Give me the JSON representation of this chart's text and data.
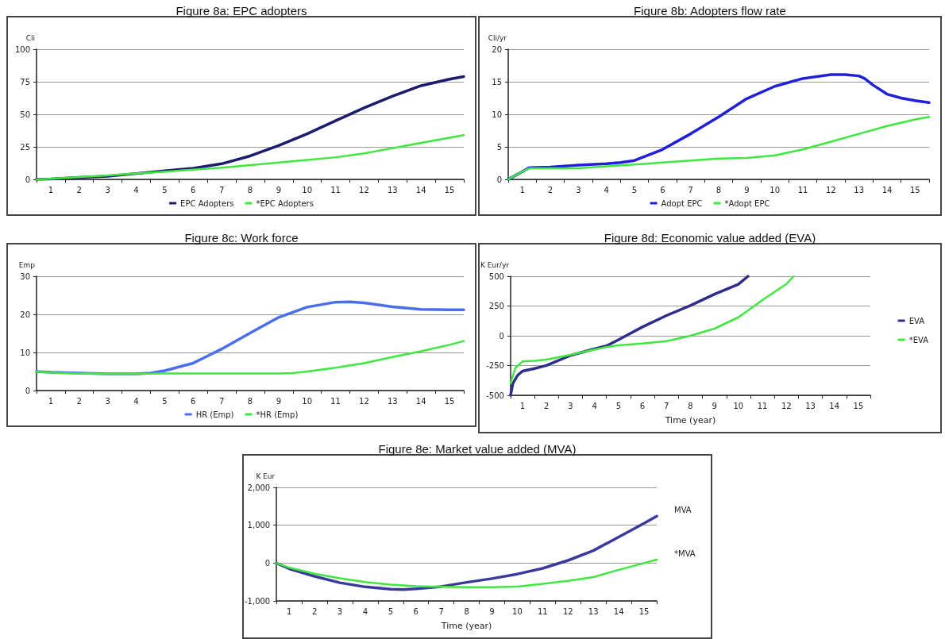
{
  "chart_data": [
    {
      "type": "line",
      "title": "Figure 8a: EPC adopters",
      "ylabel": "Cli",
      "xlim": [
        0.5,
        15.5
      ],
      "xticks": [
        {
          "value": 0.5,
          "label": null
        },
        1,
        {
          "value": 1.5,
          "label": null
        },
        2,
        {
          "value": 2.5,
          "label": null
        },
        3,
        {
          "value": 3.5,
          "label": null
        },
        4,
        {
          "value": 4.5,
          "label": null
        },
        5,
        {
          "value": 5.5,
          "label": null
        },
        6,
        {
          "value": 6.5,
          "label": null
        },
        7,
        {
          "value": 7.5,
          "label": null
        },
        8,
        {
          "value": 8.5,
          "label": null
        },
        9,
        {
          "value": 9.5,
          "label": null
        },
        10,
        {
          "value": 10.5,
          "label": null
        },
        11,
        {
          "value": 11.5,
          "label": null
        },
        12,
        {
          "value": 12.5,
          "label": null
        },
        13,
        {
          "value": 13.5,
          "label": null
        },
        14,
        {
          "value": 14.5,
          "label": null
        },
        15,
        {
          "value": 15.5,
          "label": null
        }
      ],
      "ylim": [
        0,
        100
      ],
      "yticks": [
        0,
        25,
        50,
        75,
        100
      ],
      "grid": "y",
      "legend": "bottom",
      "marker": "none",
      "line_style": "solid",
      "series": [
        {
          "name": "EPC Adopters",
          "color": "#1c1c6e",
          "x": [
            0.5,
            1,
            2,
            3,
            4,
            5,
            6,
            7,
            8,
            9,
            10,
            11,
            12,
            13,
            14,
            15,
            15.5
          ],
          "values": [
            0,
            0.3,
            1.5,
            2.5,
            4.5,
            6.5,
            8.5,
            12,
            18,
            26,
            35,
            45,
            55,
            64,
            72,
            77,
            79
          ]
        },
        {
          "name": "*EPC Adopters",
          "color": "#3ee83e",
          "x": [
            0.5,
            1,
            2,
            3,
            4,
            5,
            6,
            7,
            8,
            9,
            10,
            11,
            12,
            13,
            14,
            15,
            15.5
          ],
          "values": [
            0,
            0.5,
            1.8,
            3,
            4.5,
            6,
            7.5,
            9,
            11,
            13,
            15,
            17,
            20,
            24,
            28,
            32,
            34
          ]
        }
      ]
    },
    {
      "type": "line",
      "title": "Figure 8b: Adopters flow rate",
      "ylabel": "Cli/yr",
      "xlim": [
        0.5,
        15.5
      ],
      "xticks": [
        {
          "value": 0.5,
          "label": null
        },
        1,
        {
          "value": 1.5,
          "label": null
        },
        2,
        {
          "value": 2.5,
          "label": null
        },
        3,
        {
          "value": 3.5,
          "label": null
        },
        4,
        {
          "value": 4.5,
          "label": null
        },
        5,
        {
          "value": 5.5,
          "label": null
        },
        6,
        {
          "value": 6.5,
          "label": null
        },
        7,
        {
          "value": 7.5,
          "label": null
        },
        8,
        {
          "value": 8.5,
          "label": null
        },
        9,
        {
          "value": 9.5,
          "label": null
        },
        10,
        {
          "value": 10.5,
          "label": null
        },
        11,
        {
          "value": 11.5,
          "label": null
        },
        12,
        {
          "value": 12.5,
          "label": null
        },
        13,
        {
          "value": 13.5,
          "label": null
        },
        14,
        {
          "value": 14.5,
          "label": null
        },
        15,
        {
          "value": 15.5,
          "label": null
        }
      ],
      "ylim": [
        0,
        20
      ],
      "yticks": [
        0,
        5,
        10,
        15,
        20
      ],
      "grid": "y",
      "legend": "bottom",
      "marker": "none",
      "line_style": "solid",
      "series": [
        {
          "name": "Adopt EPC",
          "color": "#2020d8",
          "x": [
            0.5,
            1,
            1.25,
            2,
            3,
            4,
            4.5,
            5,
            6,
            7,
            8,
            9,
            10,
            11,
            12,
            12.5,
            13,
            13.2,
            13.5,
            14,
            14.5,
            15,
            15.5
          ],
          "values": [
            0,
            1.2,
            1.8,
            1.9,
            2.2,
            2.4,
            2.6,
            2.9,
            4.6,
            7,
            9.6,
            12.4,
            14.3,
            15.5,
            16.1,
            16.1,
            15.9,
            15.5,
            14.5,
            13.1,
            12.5,
            12.1,
            11.8
          ]
        },
        {
          "name": "*Adopt EPC",
          "color": "#3ee83e",
          "x": [
            0.5,
            1,
            1.25,
            2,
            3,
            4,
            5,
            6,
            7,
            8,
            9,
            10,
            11,
            12,
            13,
            14,
            15,
            15.5
          ],
          "values": [
            0,
            1.2,
            1.7,
            1.7,
            1.7,
            2,
            2.3,
            2.6,
            2.9,
            3.2,
            3.3,
            3.7,
            4.6,
            5.8,
            7,
            8.2,
            9.2,
            9.6
          ]
        }
      ]
    },
    {
      "type": "line",
      "title": "Figure 8c: Work force",
      "ylabel": "Emp",
      "xlim": [
        0.5,
        15.5
      ],
      "xticks": [
        {
          "value": 0.5,
          "label": null
        },
        1,
        {
          "value": 1.5,
          "label": null
        },
        2,
        {
          "value": 2.5,
          "label": null
        },
        3,
        {
          "value": 3.5,
          "label": null
        },
        4,
        {
          "value": 4.5,
          "label": null
        },
        5,
        {
          "value": 5.5,
          "label": null
        },
        6,
        {
          "value": 6.5,
          "label": null
        },
        7,
        {
          "value": 7.5,
          "label": null
        },
        8,
        {
          "value": 8.5,
          "label": null
        },
        9,
        {
          "value": 9.5,
          "label": null
        },
        10,
        {
          "value": 10.5,
          "label": null
        },
        11,
        {
          "value": 11.5,
          "label": null
        },
        12,
        {
          "value": 12.5,
          "label": null
        },
        13,
        {
          "value": 13.5,
          "label": null
        },
        14,
        {
          "value": 14.5,
          "label": null
        },
        15,
        {
          "value": 15.5,
          "label": null
        }
      ],
      "ylim": [
        0,
        30
      ],
      "yticks": [
        0,
        10,
        20,
        30
      ],
      "grid": "y",
      "legend": "bottom",
      "marker": "none",
      "line_style": "solid",
      "series": [
        {
          "name": "HR (Emp)",
          "color": "#4a6ef0",
          "x": [
            0.5,
            1,
            2,
            3,
            4,
            4.5,
            5,
            6,
            7,
            8,
            9,
            10,
            11,
            11.5,
            12,
            13,
            14,
            15,
            15.5
          ],
          "values": [
            5,
            4.8,
            4.6,
            4.4,
            4.4,
            4.6,
            5.2,
            7.2,
            10.9,
            15.1,
            19.2,
            21.9,
            23.2,
            23.3,
            23,
            22,
            21.3,
            21.2,
            21.2
          ]
        },
        {
          "name": "*HR (Emp)",
          "color": "#3ee83e",
          "x": [
            0.5,
            1,
            2,
            3,
            4,
            5,
            6,
            7,
            8,
            9,
            9.5,
            10,
            11,
            12,
            13,
            14,
            15,
            15.5
          ],
          "values": [
            5,
            4.7,
            4.5,
            4.4,
            4.4,
            4.5,
            4.5,
            4.5,
            4.5,
            4.5,
            4.6,
            5,
            6,
            7.2,
            8.8,
            10.3,
            12,
            13
          ]
        }
      ]
    },
    {
      "type": "line",
      "title": "Figure 8d: Economic value added (EVA)",
      "ylabel": "K Eur/yr",
      "xlabel": "Time (year)",
      "xlim": [
        0.5,
        15.5
      ],
      "xticks": [
        {
          "value": 0.5,
          "label": null
        },
        1,
        {
          "value": 1.5,
          "label": null
        },
        2,
        {
          "value": 2.5,
          "label": null
        },
        3,
        {
          "value": 3.5,
          "label": null
        },
        4,
        {
          "value": 4.5,
          "label": null
        },
        5,
        {
          "value": 5.5,
          "label": null
        },
        6,
        {
          "value": 6.5,
          "label": null
        },
        7,
        {
          "value": 7.5,
          "label": null
        },
        8,
        {
          "value": 8.5,
          "label": null
        },
        9,
        {
          "value": 9.5,
          "label": null
        },
        10,
        {
          "value": 10.5,
          "label": null
        },
        11,
        {
          "value": 11.5,
          "label": null
        },
        12,
        {
          "value": 12.5,
          "label": null
        },
        13,
        {
          "value": 13.5,
          "label": null
        },
        14,
        {
          "value": 14.5,
          "label": null
        },
        15,
        {
          "value": 15.5,
          "label": null
        }
      ],
      "ylim": [
        -500,
        500
      ],
      "yticks": [
        -500,
        -250,
        0,
        250,
        500
      ],
      "grid": "y",
      "legend": "right",
      "marker": "none",
      "line_style": "solid",
      "series": [
        {
          "name": "EVA",
          "color": "#2e2e8a",
          "x": [
            0.5,
            0.6,
            0.8,
            1,
            1.5,
            2,
            3,
            4,
            4.5,
            5,
            6,
            7,
            8,
            9,
            10,
            10.4
          ],
          "values": [
            -500,
            -400,
            -330,
            -297,
            -275,
            -249,
            -165,
            -110,
            -85,
            -33,
            74,
            170,
            254,
            349,
            433,
            500
          ]
        },
        {
          "name": "*EVA",
          "color": "#3ee83e",
          "x": [
            0.5,
            0.7,
            1,
            1.5,
            2,
            3,
            4,
            4.5,
            5,
            6,
            7,
            8,
            9,
            10,
            11,
            12,
            12.3
          ],
          "values": [
            -400,
            -270,
            -215,
            -210,
            -200,
            -160,
            -115,
            -95,
            -80,
            -65,
            -45,
            0,
            60,
            155,
            300,
            435,
            500
          ]
        }
      ]
    },
    {
      "type": "line",
      "title": "Figure 8e: Market value added (MVA)",
      "ylabel": "K Eur",
      "xlabel": "Time (year)",
      "xlim": [
        0.5,
        15.5
      ],
      "xticks": [
        {
          "value": 0.5,
          "label": null
        },
        1,
        {
          "value": 1.5,
          "label": null
        },
        2,
        {
          "value": 2.5,
          "label": null
        },
        3,
        {
          "value": 3.5,
          "label": null
        },
        4,
        {
          "value": 4.5,
          "label": null
        },
        5,
        {
          "value": 5.5,
          "label": null
        },
        6,
        {
          "value": 6.5,
          "label": null
        },
        7,
        {
          "value": 7.5,
          "label": null
        },
        8,
        {
          "value": 8.5,
          "label": null
        },
        9,
        {
          "value": 9.5,
          "label": null
        },
        10,
        {
          "value": 10.5,
          "label": null
        },
        11,
        {
          "value": 11.5,
          "label": null
        },
        12,
        {
          "value": 12.5,
          "label": null
        },
        13,
        {
          "value": 13.5,
          "label": null
        },
        14,
        {
          "value": 14.5,
          "label": null
        },
        15,
        {
          "value": 15.5,
          "label": null
        }
      ],
      "ylim": [
        -1000,
        2000
      ],
      "yticks": [
        {
          "value": -1000,
          "label": "-1,000"
        },
        0,
        {
          "value": 1000,
          "label": "1,000"
        },
        {
          "value": 2000,
          "label": "2,000"
        }
      ],
      "grid": "y",
      "legend": false,
      "marker": "none",
      "line_style": "solid",
      "series": [
        {
          "name": "MVA",
          "color": "#3a3a9e",
          "x": [
            0.5,
            1,
            2,
            3,
            4,
            5,
            5.5,
            6,
            7,
            8,
            9,
            10,
            11,
            12,
            13,
            14,
            15,
            15.5
          ],
          "values": [
            0,
            -150,
            -350,
            -520,
            -630,
            -690,
            -700,
            -680,
            -620,
            -510,
            -410,
            -290,
            -140,
            70,
            330,
            690,
            1050,
            1240
          ]
        },
        {
          "name": "*MVA",
          "color": "#3ee83e",
          "x": [
            0.5,
            1,
            2,
            3,
            4,
            5,
            6,
            7,
            8,
            9,
            10,
            11,
            12,
            13,
            14,
            15,
            15.5
          ],
          "values": [
            0,
            -120,
            -280,
            -400,
            -500,
            -570,
            -610,
            -630,
            -640,
            -640,
            -620,
            -550,
            -470,
            -370,
            -180,
            0,
            90
          ]
        }
      ]
    }
  ]
}
